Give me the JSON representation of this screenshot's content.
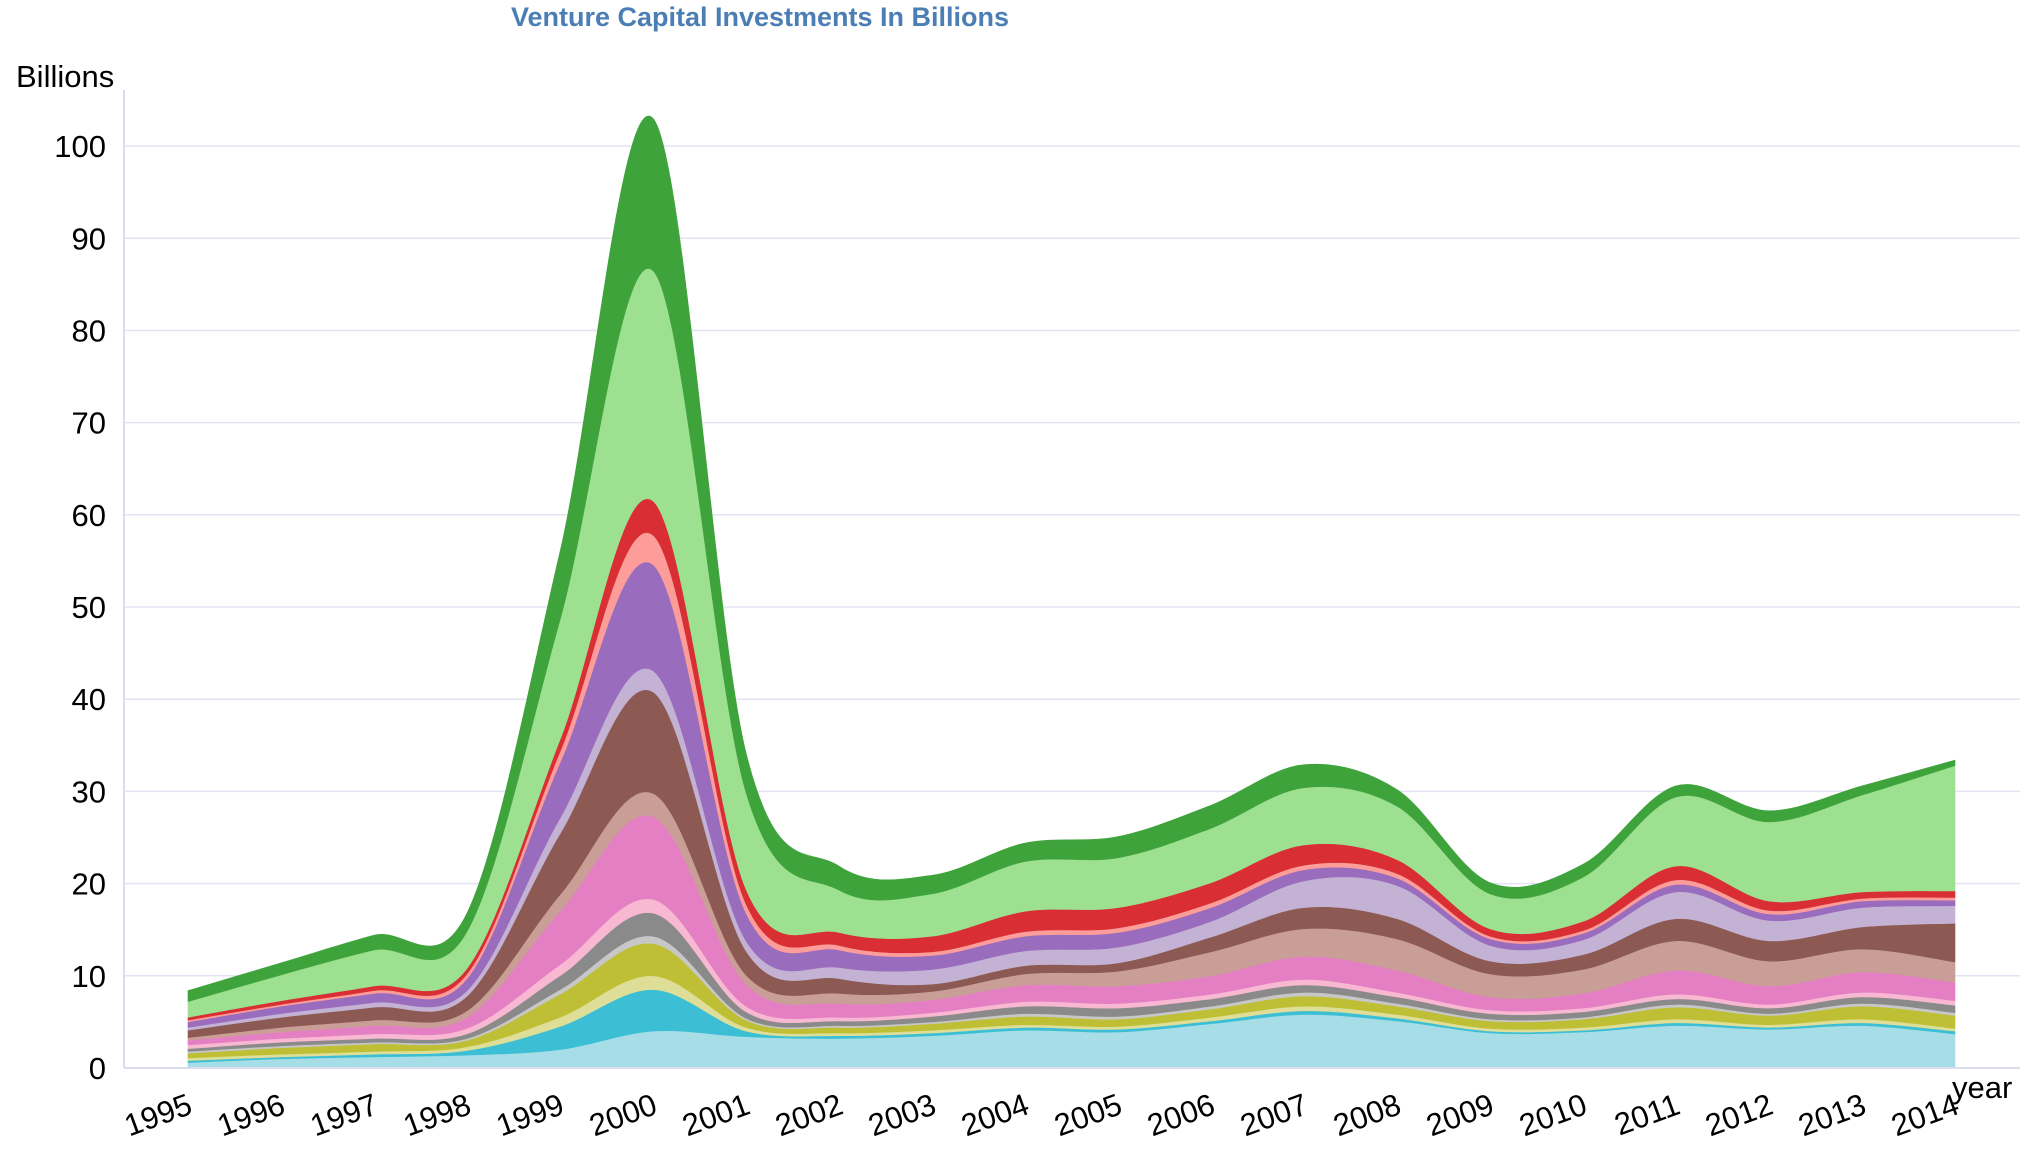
{
  "chart_data": {
    "type": "area",
    "stacked": true,
    "title": "Venture Capital Investments In Billions",
    "ylabel": "Billions",
    "xlabel": "year",
    "ylim": [
      0,
      105
    ],
    "yticks": [
      0,
      10,
      20,
      30,
      40,
      50,
      60,
      70,
      80,
      90,
      100
    ],
    "grid": true,
    "x": [
      1995,
      1996,
      1997,
      1998,
      1999,
      2000,
      2001,
      2002,
      2003,
      2004,
      2005,
      2006,
      2007,
      2008,
      2009,
      2010,
      2011,
      2012,
      2013,
      2014
    ],
    "series": [
      {
        "color": "#a6dde7",
        "values": [
          0.6,
          1.0,
          1.2,
          1.4,
          2.0,
          4.0,
          3.4,
          3.2,
          3.5,
          4.1,
          3.9,
          4.8,
          5.8,
          5.1,
          3.8,
          3.9,
          4.6,
          4.2,
          4.6,
          3.7
        ]
      },
      {
        "color": "#3cbfd4",
        "values": [
          0.2,
          0.2,
          0.3,
          0.5,
          2.5,
          4.5,
          0.6,
          0.3,
          0.3,
          0.3,
          0.3,
          0.3,
          0.4,
          0.3,
          0.2,
          0.2,
          0.3,
          0.2,
          0.3,
          0.3
        ]
      },
      {
        "color": "#dede98",
        "values": [
          0.3,
          0.3,
          0.3,
          0.4,
          1.0,
          1.5,
          0.4,
          0.3,
          0.3,
          0.3,
          0.3,
          0.4,
          0.5,
          0.4,
          0.3,
          0.3,
          0.4,
          0.3,
          0.4,
          0.3
        ]
      },
      {
        "color": "#bfbf35",
        "values": [
          0.5,
          0.7,
          0.8,
          0.7,
          2.5,
          3.5,
          0.8,
          0.6,
          0.7,
          0.9,
          0.8,
          0.9,
          1.1,
          0.9,
          0.8,
          0.9,
          1.3,
          1.0,
          1.4,
          1.4
        ]
      },
      {
        "color": "#c7c7c7",
        "values": [
          0.2,
          0.2,
          0.2,
          0.2,
          0.5,
          0.8,
          0.2,
          0.2,
          0.2,
          0.3,
          0.3,
          0.3,
          0.4,
          0.3,
          0.2,
          0.2,
          0.3,
          0.2,
          0.3,
          0.3
        ]
      },
      {
        "color": "#8a8a8a",
        "values": [
          0.3,
          0.4,
          0.4,
          0.5,
          1.5,
          2.5,
          0.7,
          0.5,
          0.6,
          0.8,
          0.9,
          0.8,
          0.8,
          0.7,
          0.6,
          0.6,
          0.6,
          0.6,
          0.7,
          0.8
        ]
      },
      {
        "color": "#f9b8d2",
        "values": [
          0.4,
          0.4,
          0.5,
          0.6,
          1.2,
          1.5,
          0.6,
          0.4,
          0.4,
          0.5,
          0.5,
          0.5,
          0.6,
          0.5,
          0.4,
          0.4,
          0.5,
          0.4,
          0.5,
          0.5
        ]
      },
      {
        "color": "#e57fc3",
        "values": [
          0.5,
          0.7,
          0.9,
          1.2,
          5.8,
          9.0,
          2.4,
          1.5,
          1.4,
          1.8,
          1.9,
          2.0,
          2.5,
          2.4,
          1.4,
          1.6,
          2.6,
          2.0,
          2.2,
          2.0
        ]
      },
      {
        "color": "#c99e96",
        "values": [
          0.3,
          0.5,
          0.6,
          0.7,
          1.8,
          2.5,
          1.0,
          1.1,
          0.9,
          1.2,
          1.6,
          2.6,
          3.0,
          3.4,
          2.5,
          2.6,
          3.2,
          2.7,
          2.5,
          2.2
        ]
      },
      {
        "color": "#8c5a52",
        "values": [
          0.8,
          1.1,
          1.4,
          1.6,
          6.6,
          11.0,
          2.6,
          1.6,
          0.8,
          0.9,
          0.9,
          1.6,
          2.3,
          2.2,
          1.4,
          1.6,
          2.4,
          2.2,
          2.4,
          4.2
        ]
      },
      {
        "color": "#c4b2d5",
        "values": [
          0.3,
          0.4,
          0.5,
          0.6,
          1.7,
          2.3,
          1.1,
          1.2,
          1.6,
          1.6,
          1.7,
          1.7,
          2.9,
          3.6,
          1.7,
          1.6,
          2.9,
          2.2,
          2.1,
          1.9
        ]
      },
      {
        "color": "#9a6cbd",
        "values": [
          0.6,
          0.8,
          1.0,
          1.3,
          6.0,
          11.5,
          3.0,
          1.9,
          1.5,
          1.6,
          1.6,
          1.5,
          1.2,
          0.8,
          0.7,
          0.7,
          0.8,
          0.7,
          0.7,
          0.6
        ]
      },
      {
        "color": "#fc9d9a",
        "values": [
          0.2,
          0.2,
          0.3,
          0.5,
          1.2,
          3.2,
          1.0,
          0.5,
          0.4,
          0.5,
          0.5,
          0.5,
          0.5,
          0.5,
          0.3,
          0.3,
          0.5,
          0.4,
          0.3,
          0.3
        ]
      },
      {
        "color": "#d82e34",
        "values": [
          0.3,
          0.4,
          0.5,
          0.6,
          1.3,
          3.7,
          1.6,
          1.4,
          1.7,
          2.2,
          2.2,
          2.2,
          2.2,
          1.5,
          0.8,
          1.0,
          1.5,
          1.0,
          0.7,
          0.7
        ]
      },
      {
        "color": "#9de090",
        "values": [
          1.7,
          2.8,
          3.9,
          4.0,
          13.0,
          25.0,
          10.5,
          4.6,
          4.6,
          5.4,
          5.4,
          5.9,
          6.2,
          5.8,
          3.8,
          4.8,
          7.5,
          8.6,
          10.5,
          13.6
        ]
      },
      {
        "color": "#3fa33c",
        "values": [
          1.2,
          1.3,
          1.6,
          2.0,
          7.4,
          16.5,
          4.3,
          2.6,
          2.0,
          2.0,
          2.3,
          2.5,
          2.5,
          1.8,
          1.2,
          1.4,
          1.2,
          1.2,
          1.0,
          0.6
        ]
      }
    ]
  }
}
